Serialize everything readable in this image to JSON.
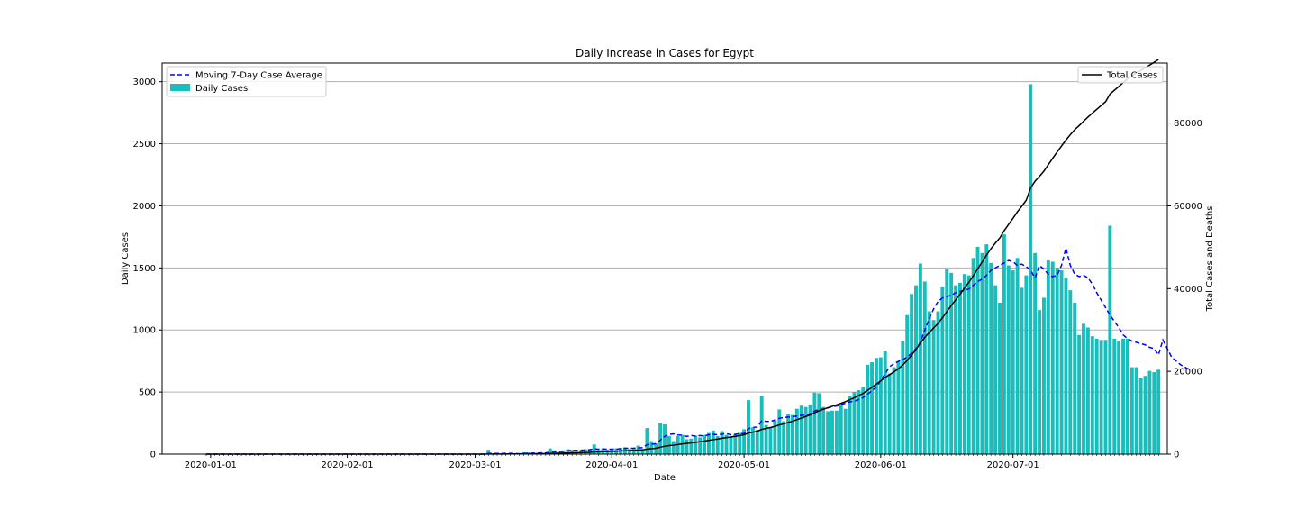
{
  "chart_data": {
    "type": "bar",
    "title": "Daily Increase in Cases for Egypt",
    "xlabel": "Date",
    "ylabel": "Daily Cases",
    "y2label": "Total Cases and Deaths",
    "x_start": "2019-12-31",
    "x_range": [
      "2019-12-21",
      "2020-08-05"
    ],
    "ylim": [
      0,
      3150
    ],
    "y2lim": [
      0,
      94500
    ],
    "x_ticks": [
      "2020-01-01",
      "2020-02-01",
      "2020-03-01",
      "2020-04-01",
      "2020-05-01",
      "2020-06-01",
      "2020-07-01"
    ],
    "y_ticks": [
      0,
      500,
      1000,
      1500,
      2000,
      2500,
      3000
    ],
    "y2_ticks": [
      0,
      20000,
      40000,
      60000,
      80000
    ],
    "grid": "horizontal",
    "legend_left": {
      "placement": "top-left",
      "entries": [
        "Moving 7-Day Case Average",
        "Daily Cases"
      ]
    },
    "legend_right": {
      "placement": "top-right",
      "entries": [
        "Total Cases"
      ]
    },
    "colors": {
      "bars": "#17BEBB",
      "average": "#0000FF",
      "total": "#000000"
    },
    "series": [
      {
        "name": "Daily Cases",
        "kind": "bar",
        "values": [
          0,
          0,
          0,
          0,
          0,
          0,
          0,
          0,
          0,
          0,
          0,
          0,
          0,
          0,
          0,
          0,
          0,
          0,
          0,
          0,
          0,
          0,
          0,
          0,
          0,
          0,
          0,
          0,
          0,
          0,
          0,
          0,
          0,
          0,
          0,
          0,
          0,
          0,
          0,
          0,
          0,
          0,
          0,
          0,
          0,
          0,
          0,
          0,
          0,
          0,
          0,
          0,
          0,
          0,
          0,
          0,
          0,
          0,
          0,
          0,
          0,
          0,
          0,
          0,
          35,
          0,
          0,
          0,
          3,
          5,
          4,
          7,
          15,
          14,
          9,
          8,
          12,
          6,
          46,
          31,
          16,
          30,
          39,
          35,
          20,
          33,
          39,
          35,
          78,
          33,
          45,
          38,
          37,
          46,
          50,
          54,
          40,
          51,
          69,
          41,
          210,
          105,
          85,
          250,
          240,
          145,
          105,
          145,
          155,
          120,
          125,
          150,
          135,
          155,
          170,
          190,
          145,
          185,
          155,
          140,
          160,
          170,
          200,
          435,
          215,
          195,
          465,
          235,
          215,
          270,
          360,
          265,
          320,
          315,
          365,
          390,
          380,
          400,
          495,
          490,
          380,
          345,
          350,
          350,
          395,
          365,
          470,
          500,
          515,
          540,
          720,
          740,
          775,
          780,
          830,
          650,
          700,
          745,
          910,
          1120,
          1290,
          1360,
          1535,
          1390,
          1150,
          1080,
          1150,
          1350,
          1490,
          1460,
          1360,
          1380,
          1450,
          1440,
          1580,
          1670,
          1620,
          1690,
          1540,
          1360,
          1220,
          1770,
          1520,
          1480,
          1580,
          1340,
          1440,
          2980,
          1620,
          1160,
          1260,
          1560,
          1550,
          1500,
          1480,
          1420,
          1320,
          1220,
          960,
          1050,
          1020,
          950,
          930,
          920,
          920,
          1840,
          930,
          910,
          930,
          930,
          700,
          700,
          610,
          630,
          670,
          660,
          680
        ]
      },
      {
        "name": "Moving 7-Day Case Average",
        "kind": "dashed-line",
        "values": [
          0,
          0,
          0,
          0,
          0,
          0,
          0,
          0,
          0,
          0,
          0,
          0,
          0,
          0,
          0,
          0,
          0,
          0,
          0,
          0,
          0,
          0,
          0,
          0,
          0,
          0,
          0,
          0,
          0,
          0,
          0,
          0,
          0,
          0,
          0,
          0,
          0,
          0,
          0,
          0,
          0,
          0,
          0,
          0,
          0,
          0,
          0,
          0,
          0,
          0,
          0,
          0,
          0,
          0,
          0,
          0,
          0,
          0,
          0,
          0,
          0,
          0,
          0,
          0,
          5,
          5,
          5,
          5,
          5,
          6,
          6,
          3,
          5,
          7,
          8,
          9,
          10,
          10,
          16,
          19,
          20,
          23,
          27,
          31,
          30,
          32,
          33,
          36,
          42,
          40,
          42,
          40,
          40,
          40,
          44,
          47,
          47,
          48,
          50,
          52,
          76,
          79,
          84,
          113,
          143,
          159,
          163,
          154,
          153,
          143,
          150,
          145,
          150,
          146,
          156,
          159,
          157,
          161,
          165,
          156,
          160,
          165,
          165,
          205,
          215,
          218,
          267,
          264,
          263,
          274,
          289,
          294,
          298,
          302,
          307,
          312,
          316,
          325,
          347,
          360,
          363,
          372,
          384,
          387,
          399,
          410,
          421,
          427,
          440,
          456,
          482,
          510,
          540,
          594,
          646,
          704,
          729,
          747,
          761,
          781,
          813,
          849,
          901,
          1000,
          1090,
          1170,
          1230,
          1258,
          1270,
          1280,
          1300,
          1310,
          1320,
          1330,
          1360,
          1390,
          1410,
          1440,
          1480,
          1500,
          1520,
          1540,
          1560,
          1550,
          1520,
          1530,
          1510,
          1480,
          1420,
          1520,
          1490,
          1450,
          1430,
          1440,
          1520,
          1660,
          1520,
          1450,
          1430,
          1440,
          1420,
          1370,
          1300,
          1240,
          1180,
          1120,
          1070,
          1020,
          960,
          930,
          910,
          900,
          890,
          880,
          860,
          850,
          800,
          920,
          850,
          780,
          750,
          720,
          700,
          680
        ]
      },
      {
        "name": "Total Cases",
        "kind": "line",
        "axis": "right",
        "values": [
          0,
          0,
          0,
          0,
          0,
          0,
          0,
          0,
          0,
          0,
          0,
          0,
          0,
          0,
          0,
          0,
          0,
          0,
          0,
          0,
          0,
          0,
          0,
          0,
          0,
          0,
          0,
          0,
          0,
          0,
          0,
          0,
          0,
          0,
          0,
          0,
          0,
          0,
          0,
          0,
          0,
          0,
          0,
          0,
          0,
          0,
          0,
          0,
          0,
          0,
          0,
          0,
          0,
          0,
          0,
          0,
          0,
          0,
          0,
          0,
          0,
          0,
          0,
          0,
          35,
          35,
          35,
          35,
          38,
          43,
          47,
          54,
          69,
          83,
          92,
          100,
          112,
          118,
          164,
          195,
          211,
          241,
          280,
          315,
          335,
          368,
          407,
          442,
          520,
          553,
          598,
          636,
          673,
          719,
          769,
          823,
          863,
          914,
          983,
          1024,
          1234,
          1339,
          1424,
          1674,
          1914,
          2059,
          2164,
          2309,
          2464,
          2584,
          2709,
          2859,
          2994,
          3149,
          3319,
          3509,
          3654,
          3839,
          3994,
          4134,
          4294,
          4464,
          4664,
          5099,
          5314,
          5509,
          5974,
          6209,
          6424,
          6694,
          7054,
          7319,
          7639,
          7954,
          8319,
          8709,
          9089,
          9489,
          9984,
          10474,
          10854,
          11199,
          11549,
          11899,
          12294,
          12659,
          13129,
          13629,
          14144,
          14684,
          15404,
          16144,
          16919,
          17699,
          18529,
          19179,
          19879,
          20624,
          21534,
          22654,
          23944,
          25304,
          26839,
          28229,
          29379,
          30459,
          31609,
          32959,
          34449,
          35909,
          37269,
          38649,
          40099,
          41539,
          43119,
          44789,
          46409,
          48099,
          49639,
          50999,
          52219,
          53989,
          55509,
          56989,
          58569,
          59909,
          61349,
          64329,
          65949,
          67109,
          68369,
          69929,
          71479,
          72979,
          74459,
          75879,
          77199,
          78419,
          79379,
          80429,
          81449,
          82399,
          83329,
          84249,
          85169,
          87009,
          87939,
          88849,
          89779,
          90709,
          91409,
          92109,
          92719,
          93349,
          94019,
          94679,
          95359
        ]
      }
    ]
  }
}
